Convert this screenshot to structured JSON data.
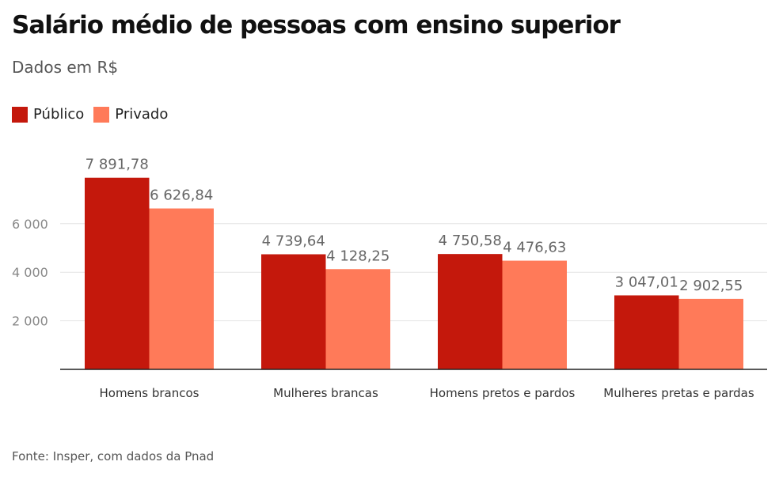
{
  "header": {
    "title": "Salário médio de pessoas com ensino superior",
    "subtitle": "Dados em R$"
  },
  "legend": [
    {
      "label": "Público",
      "color": "#c4180c"
    },
    {
      "label": "Privado",
      "color": "#ff7a59"
    }
  ],
  "footer": {
    "source": "Fonte: Insper, com dados da Pnad"
  },
  "chart_data": {
    "type": "bar",
    "title": "Salário médio de pessoas com ensino superior",
    "subtitle": "Dados em R$",
    "categories": [
      "Homens brancos",
      "Mulheres brancas",
      "Homens pretos e pardos",
      "Mulheres pretas e pardas"
    ],
    "series": [
      {
        "name": "Público",
        "color": "#c4180c",
        "values": [
          7891.78,
          4739.64,
          4750.58,
          3047.01
        ],
        "labels": [
          "7 891,78",
          "4 739,64",
          "4 750,58",
          "3 047,01"
        ]
      },
      {
        "name": "Privado",
        "color": "#ff7a59",
        "values": [
          6626.84,
          4128.25,
          4476.63,
          2902.55
        ],
        "labels": [
          "6 626,84",
          "4 128,25",
          "4 476,63",
          "2 902,55"
        ]
      }
    ],
    "y_ticks": [
      2000,
      4000,
      6000
    ],
    "y_tick_labels": [
      "2 000",
      "4 000",
      "6 000"
    ],
    "ylim": [
      0,
      8000
    ],
    "grid": true,
    "legend_position": "top-left"
  }
}
